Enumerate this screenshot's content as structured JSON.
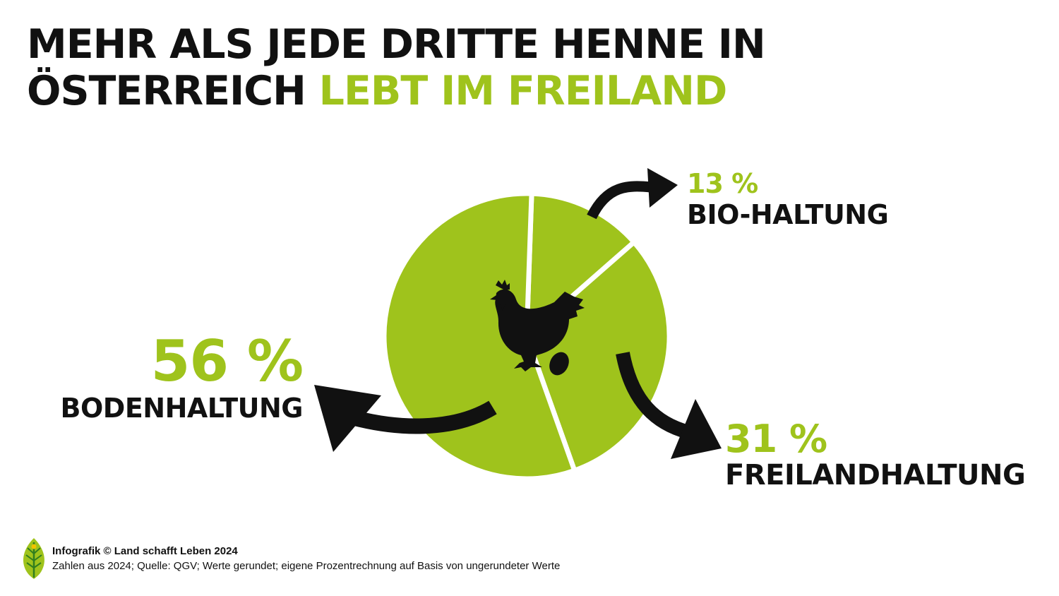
{
  "headline": {
    "line1": "MEHR ALS JEDE DRITTE HENNE IN",
    "line2_dark": "ÖSTERREICH",
    "line2_accent": "LEBT IM FREILAND"
  },
  "chart_data": {
    "type": "pie",
    "title": "",
    "slices": [
      {
        "label": "BIO-HALTUNG",
        "value": 13,
        "value_label": "13 %"
      },
      {
        "label": "FREILANDHALTUNG",
        "value": 31,
        "value_label": "31 %"
      },
      {
        "label": "BODENHALTUNG",
        "value": 56,
        "value_label": "56 %"
      }
    ],
    "slice_color": "#9fc31c",
    "separator_color": "#ffffff",
    "center_icon": "hen-with-egg-icon"
  },
  "colors": {
    "accent": "#9fc31c",
    "text": "#111111",
    "background": "#ffffff"
  },
  "footer": {
    "logo_icon": "leaf-logo-icon",
    "credit": "Infografik © Land schafft Leben 2024",
    "source": "Zahlen aus 2024; Quelle: QGV; Werte gerundet; eigene Prozentrechnung auf Basis von ungerundeter Werte"
  }
}
